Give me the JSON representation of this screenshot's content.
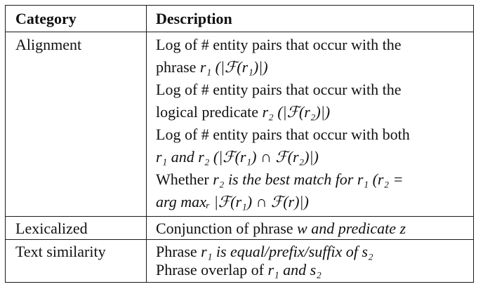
{
  "header": {
    "category": "Category",
    "description": "Description"
  },
  "rows": [
    {
      "category": "Alignment",
      "lines": [
        {
          "prefix": "Log of # entity pairs that occur with the"
        },
        {
          "prefix": "phrase",
          "tail": "r₁ (|ℱ(r₁)|)"
        },
        {
          "prefix": "Log of # entity pairs that occur with the"
        },
        {
          "prefix": "logical predicate",
          "tail": "r₂ (|ℱ(r₂)|)"
        },
        {
          "prefix": "Log of # entity pairs that occur with both"
        },
        {
          "prefix": "",
          "tail": "r₁ and r₂ (|ℱ(r₁) ∩ ℱ(r₂)|)"
        },
        {
          "prefix": "Whether",
          "tail": "r₂ is the best match for r₁ (r₂ ="
        },
        {
          "prefix": "",
          "tail": "arg maxᵣ |ℱ(r₁) ∩ ℱ(r)|)"
        }
      ]
    },
    {
      "category": "Lexicalized",
      "lines": [
        {
          "prefix": "Conjunction of phrase",
          "tail": "w and predicate z"
        }
      ]
    },
    {
      "category": "Text similarity",
      "lines": [
        {
          "prefix": "Phrase",
          "tail": "r₁ is equal/prefix/suffix of s₂"
        },
        {
          "prefix": "Phrase overlap of",
          "tail": "r₁ and s₂"
        }
      ]
    }
  ]
}
